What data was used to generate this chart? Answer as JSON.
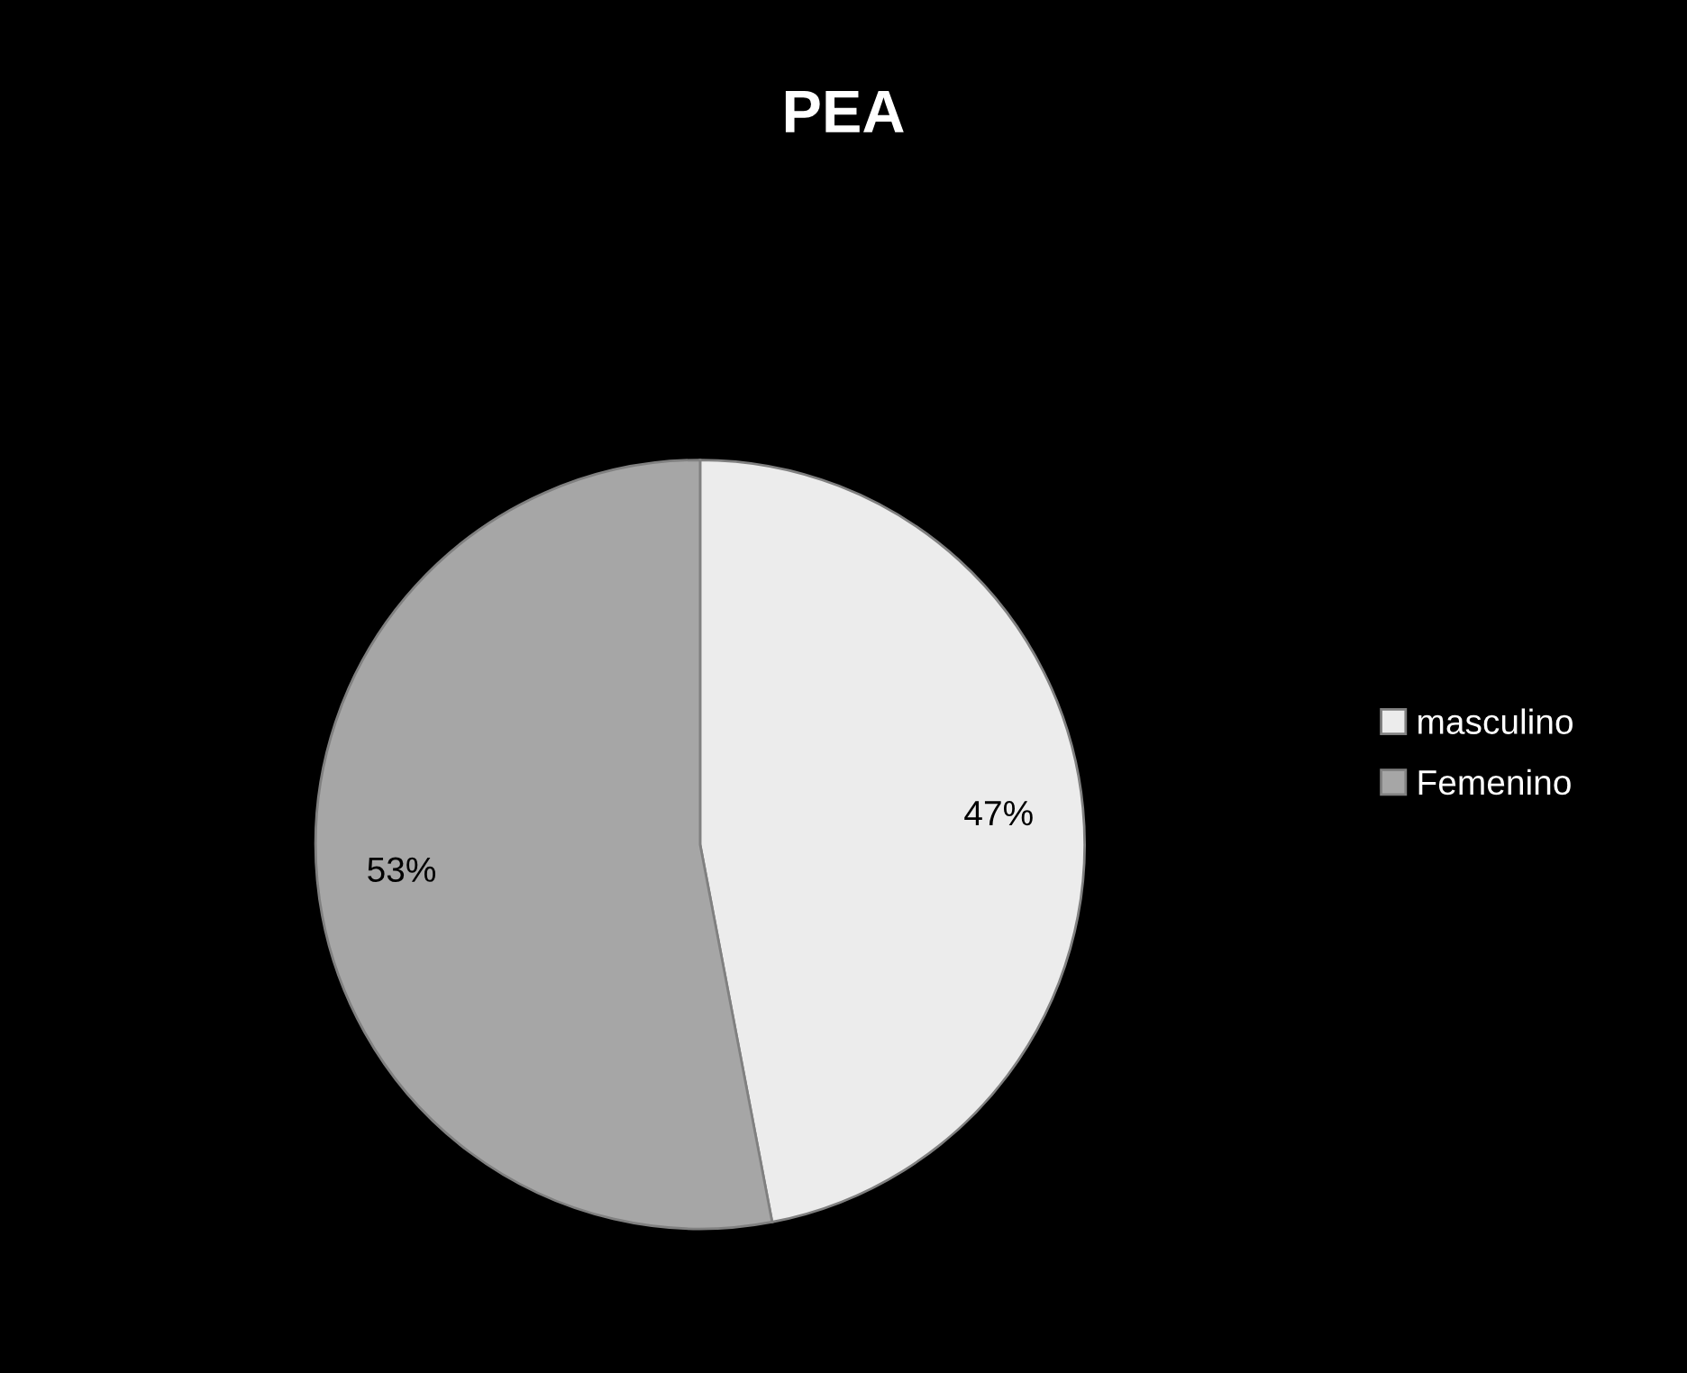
{
  "chart_data": {
    "type": "pie",
    "title": "PEA",
    "categories": [
      "masculino",
      "Femenino"
    ],
    "values": [
      47,
      53
    ],
    "value_labels": [
      "47%",
      "53%"
    ],
    "colors": [
      "#ececec",
      "#a6a6a6"
    ],
    "legend": "right"
  }
}
